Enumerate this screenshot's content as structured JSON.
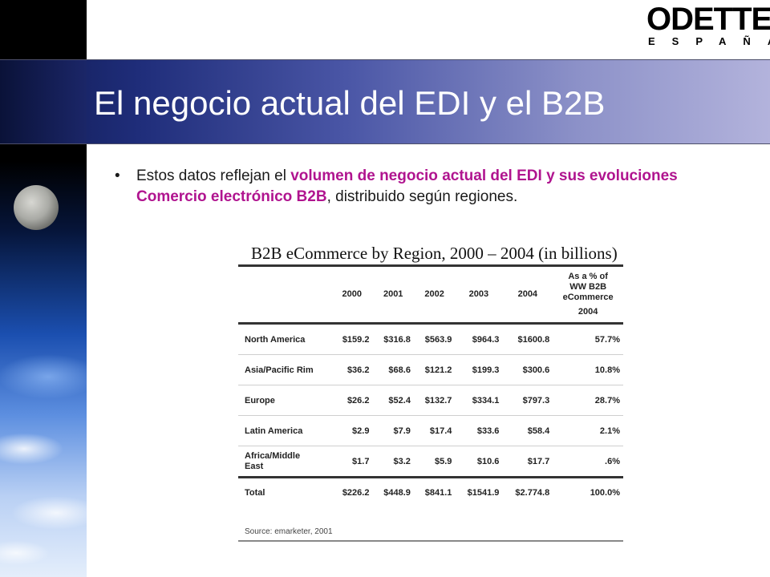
{
  "slide": {
    "title": "El negocio actual del EDI y el B2B",
    "logo_word": "ODETTE",
    "logo_sub": "ESPAÑA",
    "bullet": {
      "symbol": "•",
      "text_before": "Estos datos reflejan el ",
      "highlight": "volumen de negocio actual del EDI y sus evoluciones Comercio electrónico B2B",
      "text_after": ", distribuido según regiones."
    }
  },
  "table": {
    "title": "B2B eCommerce by Region, 2000 – 2004 (in billions)",
    "columns": [
      "2000",
      "2001",
      "2002",
      "2003",
      "2004"
    ],
    "share_header_line1": "As a % of",
    "share_header_line2": "WW B2B",
    "share_header_line3": "eCommerce",
    "share_header_line4": "2004",
    "rows": [
      {
        "region": "North America",
        "values": [
          "$159.2",
          "$316.8",
          "$563.9",
          "$964.3",
          "$1600.8"
        ],
        "share": "57.7%"
      },
      {
        "region": "Asia/Pacific Rim",
        "values": [
          "$36.2",
          "$68.6",
          "$121.2",
          "$199.3",
          "$300.6"
        ],
        "share": "10.8%"
      },
      {
        "region": "Europe",
        "values": [
          "$26.2",
          "$52.4",
          "$132.7",
          "$334.1",
          "$797.3"
        ],
        "share": "28.7%"
      },
      {
        "region": "Latin America",
        "values": [
          "$2.9",
          "$7.9",
          "$17.4",
          "$33.6",
          "$58.4"
        ],
        "share": "2.1%"
      },
      {
        "region_line1": "Africa/Middle",
        "region_line2": "East",
        "values": [
          "$1.7",
          "$3.2",
          "$5.9",
          "$10.6",
          "$17.7"
        ],
        "share": ".6%"
      }
    ],
    "total": {
      "region": "Total",
      "values": [
        "$226.2",
        "$448.9",
        "$841.1",
        "$1541.9",
        "$2.774.8"
      ],
      "share": "100.0%"
    },
    "source": "Source: emarketer, 2001"
  }
}
